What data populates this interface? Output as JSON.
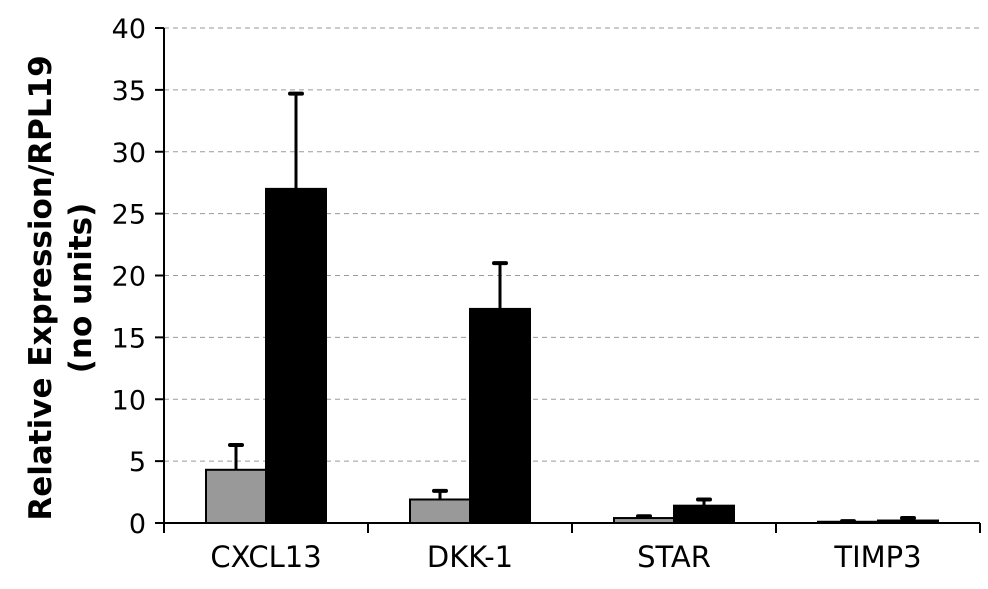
{
  "chart_data": {
    "type": "bar",
    "title": "",
    "xlabel": "",
    "ylabel": [
      "Relative Expression/RPL19",
      "(no units)"
    ],
    "categories": [
      "CXCL13",
      "DKK-1",
      "STAR",
      "TIMP3"
    ],
    "ylim": [
      0,
      40
    ],
    "yticks": [
      0,
      5,
      10,
      15,
      20,
      25,
      30,
      35,
      40
    ],
    "grid": true,
    "legend": "none",
    "series": [
      {
        "color": "#999999",
        "values": [
          4.3,
          1.9,
          0.4,
          0.1
        ],
        "errors": [
          2.0,
          0.7,
          0.15,
          0.05
        ]
      },
      {
        "color": "#000000",
        "values": [
          27.0,
          17.3,
          1.4,
          0.2
        ],
        "errors": [
          7.7,
          3.7,
          0.5,
          0.2
        ]
      }
    ]
  }
}
